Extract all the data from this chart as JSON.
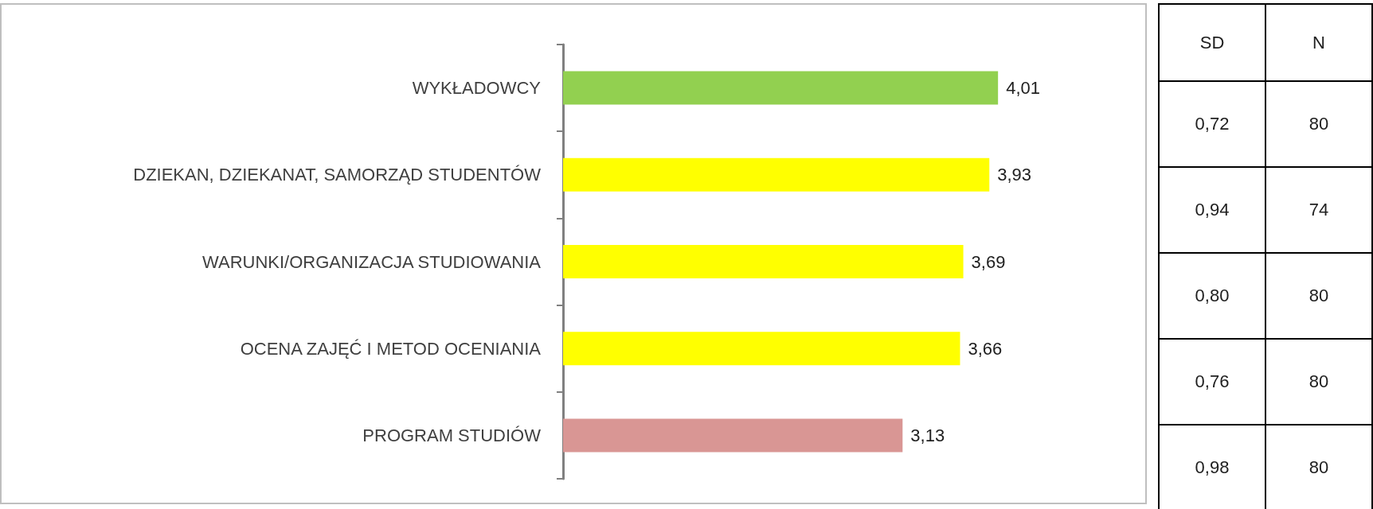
{
  "chart_data": [
    {
      "type": "bar",
      "orientation": "horizontal",
      "categories": [
        "WYKŁADOWCY",
        "DZIEKAN, DZIEKANAT, SAMORZĄD STUDENTÓW",
        "WARUNKI/ORGANIZACJA STUDIOWANIA",
        "OCENA ZAJĘĆ I METOD OCENIANIA",
        "PROGRAM STUDIÓW"
      ],
      "values": [
        4.01,
        3.93,
        3.69,
        3.66,
        3.13
      ],
      "colors": [
        "#92d050",
        "#ffff00",
        "#ffff00",
        "#ffff00",
        "#d99694"
      ],
      "value_labels": [
        "4,01",
        "3,93",
        "3,69",
        "3,66",
        "3,13"
      ],
      "tick_labels": "y"
    },
    {
      "type": "other",
      "categories": [
        "SD",
        "N"
      ],
      "cell_labels": [
        [
          "0,72",
          "80"
        ],
        [
          "0,94",
          "74"
        ],
        [
          "0,80",
          "80"
        ],
        [
          "0,76",
          "80"
        ],
        [
          "0,98",
          "80"
        ]
      ]
    }
  ]
}
